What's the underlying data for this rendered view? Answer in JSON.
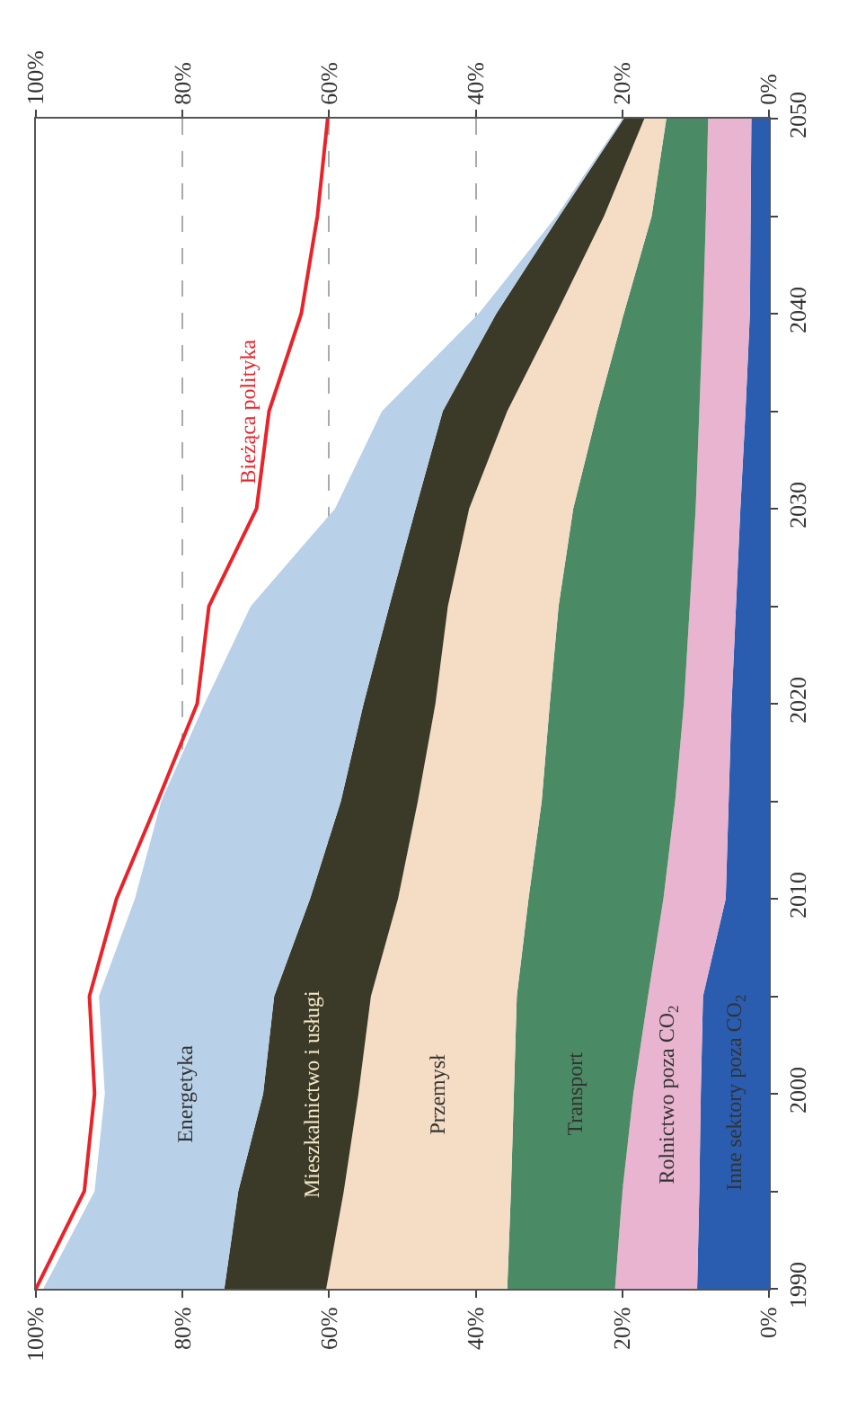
{
  "chart_data": {
    "type": "area",
    "orientation": "horizontal",
    "stacked": true,
    "x": [
      1990,
      1995,
      2000,
      2005,
      2010,
      2015,
      2020,
      2025,
      2030,
      2035,
      2040,
      2045,
      2050
    ],
    "series": [
      {
        "name": "Inne sektory poza CO$_{2}$",
        "color": "#2a5db0",
        "values": [
          9.8,
          9.5,
          9.3,
          9,
          5.9,
          5.5,
          5.1,
          4.5,
          3.9,
          3.2,
          2.6,
          2.5,
          2.4
        ]
      },
      {
        "name": "Rolnictwo poza CO$_{2}$",
        "color": "#e8b4d0",
        "values": [
          11.2,
          10.5,
          9.2,
          7.5,
          8.5,
          7.3,
          6.5,
          6.3,
          6.1,
          6.3,
          6.4,
          6.1,
          5.9
        ]
      },
      {
        "name": "Transport",
        "color": "#4a8a64",
        "values": [
          14.7,
          15.2,
          16.3,
          17.9,
          18.4,
          18.2,
          18.3,
          17.9,
          16.7,
          13.9,
          10.8,
          7.4,
          5.7
        ]
      },
      {
        "name": "Przemysł",
        "color": "#f5dcc4",
        "values": [
          24.7,
          22.8,
          21.2,
          19.9,
          17.8,
          16.9,
          15.6,
          15.1,
          14.2,
          12.3,
          9.2,
          6.5,
          3
        ]
      },
      {
        "name": "Mieszkalnictwo i usługi",
        "color": "#3b3a28",
        "values": [
          13.9,
          14.4,
          13,
          13.2,
          12,
          10.5,
          9.8,
          8,
          7.3,
          8.8,
          8.2,
          6.1,
          2.8
        ]
      },
      {
        "name": "Energetyka",
        "color": "#b8d0e8",
        "values": [
          24.7,
          19.6,
          21.6,
          23.9,
          23.9,
          24.5,
          21.7,
          18.9,
          11,
          8.3,
          2.4,
          0.4,
          0.2
        ]
      },
      {
        "name": "Bieżąca polityka",
        "type": "line",
        "color": "#e8242a",
        "values": [
          100,
          93.4,
          92,
          92.7,
          89,
          83.4,
          78,
          76.4,
          69.9,
          68.2,
          63.8,
          61.6,
          60.2
        ]
      }
    ],
    "xlim": [
      100,
      0
    ],
    "xticks": [
      {
        "value": 100,
        "label": "100%"
      },
      {
        "value": 80,
        "label": "80%"
      },
      {
        "value": 60,
        "label": "60%"
      },
      {
        "value": 40,
        "label": "40%"
      },
      {
        "value": 20,
        "label": "20%"
      },
      {
        "value": 0,
        "label": "0%"
      }
    ],
    "x2lim": [
      100,
      0
    ],
    "x2ticks": [
      {
        "value": 100,
        "label": "100%"
      },
      {
        "value": 80,
        "label": "80%"
      },
      {
        "value": 60,
        "label": "60%"
      },
      {
        "value": 40,
        "label": "40%"
      },
      {
        "value": 20,
        "label": "20%"
      },
      {
        "value": 0,
        "label": "0%"
      }
    ],
    "ylim": [
      1990,
      2050
    ],
    "yticks": [
      1990,
      {
        "value": 1995,
        "label": null
      },
      2000,
      {
        "value": 2005,
        "label": null
      },
      2010,
      {
        "value": 2015,
        "label": null
      },
      2020,
      {
        "value": 2025,
        "label": null
      },
      2030,
      {
        "value": 2035,
        "label": null
      },
      2040,
      {
        "value": 2045,
        "label": null
      },
      2050
    ],
    "grid": "x",
    "legend": false
  }
}
